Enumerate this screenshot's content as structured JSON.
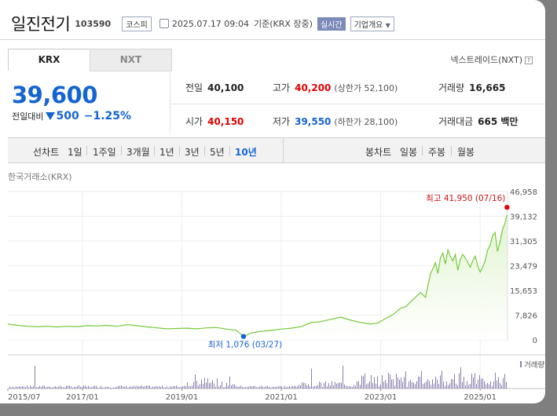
{
  "header": {
    "company": "일진전기",
    "code": "103590",
    "market": "코스피",
    "datetime": "2025.07.17 09:04",
    "basis": "기준(KRX 장중)",
    "live": "실시간",
    "company_info": "기업개요",
    "company_info_icon": "chevron-down-icon"
  },
  "tabs": {
    "krx": "KRX",
    "nxt": "NXT",
    "active": "KRX"
  },
  "nex_link": "넥스트레이드(NXT)",
  "quote": {
    "price": "39,600",
    "change_label": "전일대비",
    "change_value": "500",
    "change_pct": "−1.25%",
    "direction": "down"
  },
  "stats": {
    "prev_label": "전일",
    "prev_value": "40,100",
    "high_label": "고가",
    "high_value": "40,200",
    "upper_limit": "(상한가 52,100)",
    "volume_label": "거래량",
    "volume_value": "16,665",
    "open_label": "시가",
    "open_value": "40,150",
    "low_label": "저가",
    "low_value": "39,550",
    "lower_limit": "(하한가 28,100)",
    "amount_label": "거래대금",
    "amount_value": "665 백만"
  },
  "toolbar": {
    "line_label": "선차트",
    "line_periods": [
      "1일",
      "1주일",
      "3개월",
      "1년",
      "3년",
      "5년",
      "10년"
    ],
    "active_period": "10년",
    "candle_label": "봉차트",
    "candle_periods": [
      "일봉",
      "주봉",
      "월봉"
    ]
  },
  "colors": {
    "price_down": "#1464d2",
    "price_up": "#e10000",
    "line": "#76c93c",
    "fill": "#dff3cd",
    "volume": "#8b7fb0"
  },
  "chart_data": {
    "type": "area",
    "source": "한국거래소(KRX)",
    "yticks": [
      46958,
      39132,
      31305,
      23479,
      15653,
      7826,
      0
    ],
    "ytick_labels": [
      "46,958",
      "39,132",
      "31,305",
      "23,479",
      "15,653",
      "7,826",
      "0"
    ],
    "ylim": [
      0,
      46958
    ],
    "xlim": [
      2015.5,
      2025.55
    ],
    "xticks": [
      2015.5,
      2017.0,
      2019.0,
      2021.0,
      2023.0,
      2025.0
    ],
    "xtick_labels": [
      "2015/07",
      "2017/01",
      "2019/01",
      "2021/01",
      "2023/01",
      "2025/01"
    ],
    "high_annotation": "최고 41,950 (07/16)",
    "low_annotation": "최저 1,076 (03/27)",
    "high_point": {
      "x": 2025.54,
      "y": 41950
    },
    "low_point": {
      "x": 2020.24,
      "y": 1076
    },
    "price": {
      "x": [
        2015.5,
        2015.7,
        2015.9,
        2016.1,
        2016.3,
        2016.5,
        2016.7,
        2016.9,
        2017.1,
        2017.3,
        2017.5,
        2017.7,
        2017.9,
        2018.1,
        2018.3,
        2018.5,
        2018.7,
        2018.9,
        2019.1,
        2019.3,
        2019.5,
        2019.7,
        2019.9,
        2020.1,
        2020.24,
        2020.4,
        2020.6,
        2020.8,
        2021.0,
        2021.2,
        2021.4,
        2021.6,
        2021.8,
        2022.0,
        2022.2,
        2022.4,
        2022.6,
        2022.8,
        2022.95,
        2023.1,
        2023.25,
        2023.4,
        2023.5,
        2023.6,
        2023.7,
        2023.8,
        2023.9,
        2024.0,
        2024.05,
        2024.1,
        2024.15,
        2024.2,
        2024.25,
        2024.3,
        2024.35,
        2024.4,
        2024.45,
        2024.5,
        2024.55,
        2024.6,
        2024.65,
        2024.7,
        2024.75,
        2024.8,
        2024.85,
        2024.9,
        2024.95,
        2025.0,
        2025.05,
        2025.1,
        2025.15,
        2025.2,
        2025.25,
        2025.3,
        2025.35,
        2025.4,
        2025.45,
        2025.5,
        2025.54
      ],
      "y": [
        5000,
        4600,
        4300,
        4200,
        4300,
        4100,
        4300,
        4200,
        4500,
        4400,
        4600,
        4300,
        4800,
        4500,
        4100,
        3800,
        3500,
        3600,
        3700,
        3500,
        3800,
        3900,
        3400,
        3000,
        1076,
        2200,
        2700,
        3000,
        3400,
        3700,
        4200,
        5500,
        5800,
        6500,
        7200,
        6200,
        5500,
        5000,
        5400,
        6800,
        8000,
        10000,
        10500,
        12000,
        13500,
        15000,
        13500,
        21000,
        22500,
        24500,
        21000,
        26000,
        27500,
        24000,
        28500,
        26500,
        25000,
        27000,
        22000,
        25500,
        27000,
        26000,
        24500,
        23000,
        25000,
        26500,
        23500,
        21500,
        23000,
        25000,
        28500,
        30000,
        33000,
        34000,
        28000,
        31000,
        35000,
        37000,
        39600
      ]
    },
    "volume_label": "거래량"
  }
}
